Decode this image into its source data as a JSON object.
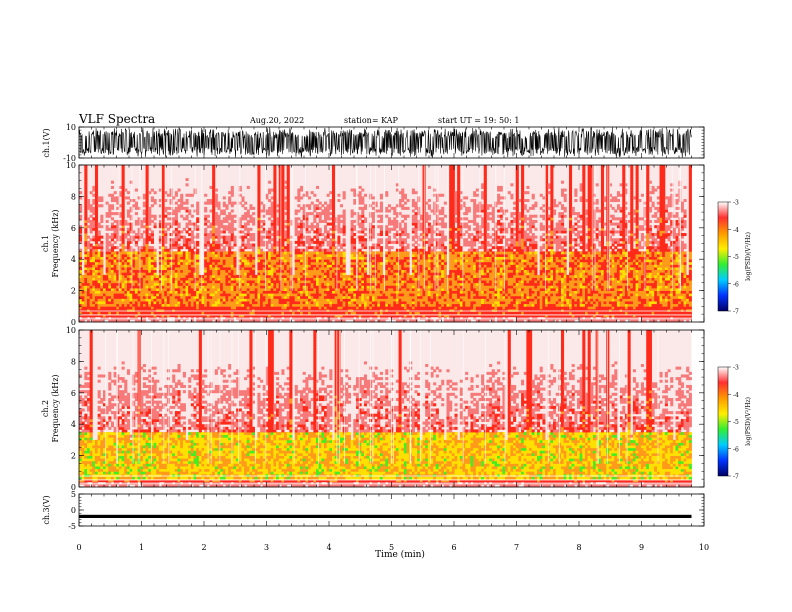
{
  "header": {
    "title": "VLF Spectra",
    "date": "Aug.20, 2022",
    "station": "station= KAP",
    "start": "start  UT =   19: 50: 1"
  },
  "colors": {
    "line": "#000000",
    "spectrogram_low": "#ffffff",
    "spectrogram_mid": "#ff2a1a",
    "spectrogram_high": "#ffe000",
    "spectrogram_peak": "#44ee22"
  },
  "colorbar": {
    "label": "log(PSD)(V²/Hz)",
    "ticks": [
      "-3",
      "-4",
      "-5",
      "-6",
      "-7"
    ],
    "stops": [
      "#ffffff",
      "#ff3030",
      "#ff9900",
      "#ffee00",
      "#33ee33",
      "#00ccff",
      "#0033ff",
      "#000066"
    ]
  },
  "chart_data": [
    {
      "type": "line",
      "name": "ch1-waveform",
      "ylabel": "ch.1(V)",
      "ylim": [
        -10,
        10
      ],
      "ytick_labels": [
        "10",
        "-10"
      ],
      "xlim": [
        0,
        10
      ],
      "data_end_min": 9.8,
      "note_series": "broadband noisy waveform saturating near ±10 V"
    },
    {
      "type": "heatmap",
      "name": "ch1-spectrogram",
      "ylabel": "ch.1\nFrequency (kHz)",
      "ylim": [
        0,
        10
      ],
      "yticks": [
        0,
        2,
        4,
        6,
        8,
        10
      ],
      "xlim": [
        0,
        10
      ],
      "data_end_min": 9.8,
      "zlim": [
        -7,
        -3
      ],
      "strong_band_khz": [
        1,
        4.5
      ]
    },
    {
      "type": "heatmap",
      "name": "ch2-spectrogram",
      "ylabel": "ch.2\nFrequency (kHz)",
      "ylim": [
        0,
        10
      ],
      "yticks": [
        0,
        2,
        4,
        6,
        8,
        10
      ],
      "xlim": [
        0,
        10
      ],
      "data_end_min": 9.8,
      "zlim": [
        -7,
        -3
      ],
      "strong_band_khz": [
        0.5,
        3.5
      ]
    },
    {
      "type": "line",
      "name": "ch3-waveform",
      "ylabel": "ch.3(V)",
      "ylim": [
        -5,
        5
      ],
      "ytick_labels": [
        "5",
        "0",
        "-5"
      ],
      "xlim": [
        0,
        10
      ],
      "xticks": [
        0,
        1,
        2,
        3,
        4,
        5,
        6,
        7,
        8,
        9,
        10
      ],
      "xlabel": "Time (min)",
      "data_end_min": 9.8,
      "band_v": [
        -2.5,
        -1.5
      ]
    }
  ]
}
